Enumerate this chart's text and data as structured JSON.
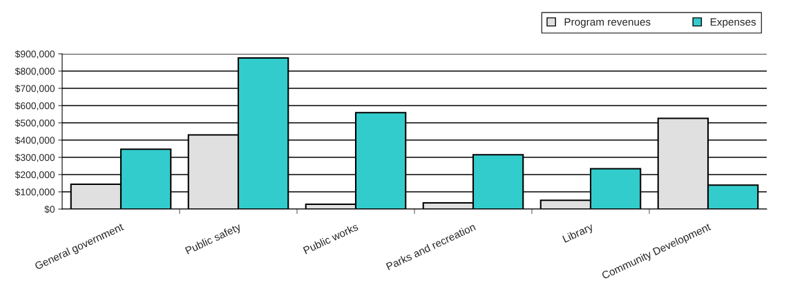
{
  "chart_data": {
    "type": "bar",
    "categories": [
      "General government",
      "Public safety",
      "Public works",
      "Parks and recreation",
      "Library",
      "Community Development"
    ],
    "series": [
      {
        "name": "Program revenues",
        "color": "#e0e0e0",
        "values": [
          144000,
          430000,
          28000,
          36000,
          51000,
          526000
        ]
      },
      {
        "name": "Expenses",
        "color": "#33cccc",
        "values": [
          347000,
          876000,
          559000,
          315000,
          234000,
          139000
        ]
      }
    ],
    "ylim": [
      0,
      900000
    ],
    "yticks": [
      {
        "value": 0,
        "label": "$0"
      },
      {
        "value": 100000,
        "label": "$100,000"
      },
      {
        "value": 200000,
        "label": "$200,000"
      },
      {
        "value": 300000,
        "label": "$300,000"
      },
      {
        "value": 400000,
        "label": "$400,000"
      },
      {
        "value": 500000,
        "label": "$500,000"
      },
      {
        "value": 600000,
        "label": "$600,000"
      },
      {
        "value": 700000,
        "label": "$700,000"
      },
      {
        "value": 800000,
        "label": "$800,000"
      },
      {
        "value": 900000,
        "label": "$900,000"
      }
    ],
    "grid": "y",
    "legend": "top right"
  }
}
